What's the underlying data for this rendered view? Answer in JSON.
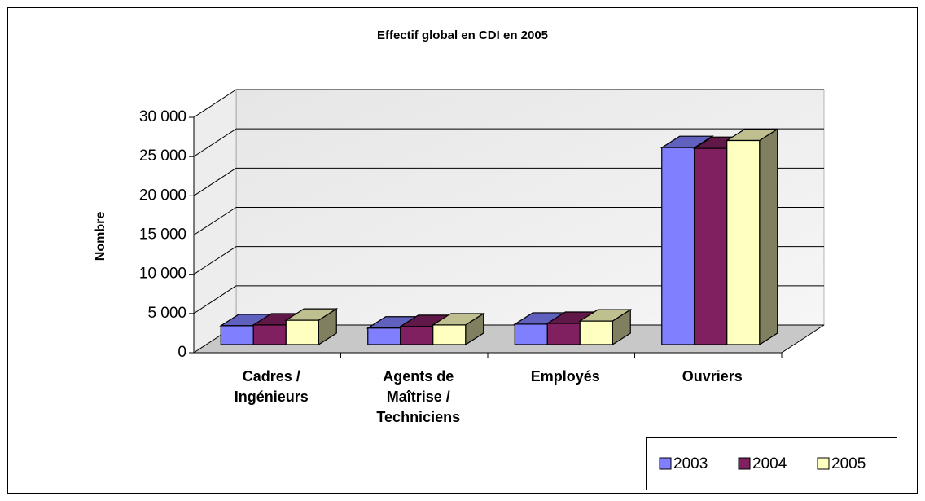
{
  "chart_data": {
    "type": "bar3d",
    "title": "Effectif global en CDI en 2005",
    "y_label": "Nombre",
    "categories": [
      "Cadres / Ingénieurs",
      "Agents de Maîtrise / Techniciens",
      "Employés",
      "Ouvriers"
    ],
    "series": [
      {
        "name": "2003",
        "color": "#8080ff",
        "values": [
          2400,
          2100,
          2600,
          25100
        ]
      },
      {
        "name": "2004",
        "color": "#802060",
        "values": [
          2500,
          2300,
          2700,
          25000
        ]
      },
      {
        "name": "2005",
        "color": "#ffffc0",
        "values": [
          3100,
          2500,
          3000,
          26000
        ]
      }
    ],
    "ylim": [
      0,
      30000
    ],
    "yticks": [
      0,
      {
        "value": 5000,
        "label": "5 000"
      },
      {
        "value": 10000,
        "label": "10 000"
      },
      {
        "value": 15000,
        "label": "15 000"
      },
      {
        "value": 20000,
        "label": "20 000"
      },
      {
        "value": 25000,
        "label": "25 000"
      },
      {
        "value": 30000,
        "label": "30 000"
      }
    ],
    "grid": true,
    "legend": "bottom-right"
  }
}
